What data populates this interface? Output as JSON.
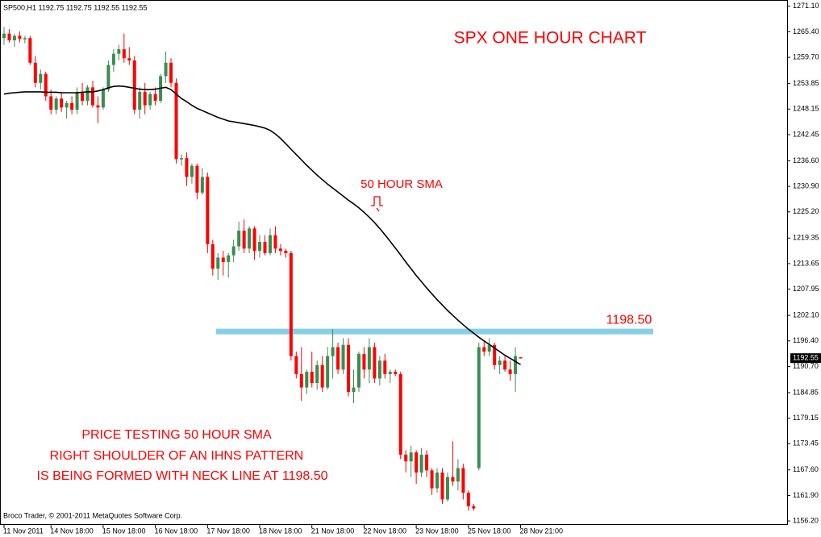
{
  "chart_data": {
    "type": "candlestick",
    "header": "SP500,H1  1192.75 1192.75 1192.55 1192.55",
    "title": "SPX ONE HOUR CHART",
    "sma_label": "50 HOUR SMA",
    "notes": [
      "PRICE TESTING 50 HOUR SMA",
      "RIGHT SHOULDER OF AN IHNS PATTERN",
      "IS BEING FORMED WITH NECK LINE AT 1198.50"
    ],
    "footer": "Broco Trader, © 2001-2011 MetaQuotes Software Corp.",
    "up_color": "#3c8c50",
    "down_color": "#ff0000",
    "neckline": {
      "value": 1198.5,
      "label": "1198.50",
      "color": "#87cfe6"
    },
    "last_price": {
      "value": 1192.55,
      "label": "1192.55"
    },
    "open": [
      1264,
      1265,
      1263.5,
      1264.5,
      1263.8,
      1264,
      1258.5,
      1254,
      1256,
      1251,
      1248,
      1250.5,
      1248.5,
      1249.5,
      1248,
      1252,
      1250,
      1253,
      1249,
      1248.5,
      1252.5,
      1258,
      1260.5,
      1261.5,
      1259.5,
      1259,
      1248,
      1252,
      1249,
      1251.5,
      1250,
      1255.5,
      1258.5,
      1254,
      1237,
      1237.2,
      1233,
      1235.5,
      1229.5,
      1233,
      1218,
      1212.5,
      1215,
      1214,
      1215.5,
      1217.5,
      1221,
      1217,
      1221.5,
      1216.5,
      1218.5,
      1216,
      1220,
      1217,
      1216.5,
      1216,
      1193,
      1189,
      1186,
      1189.5,
      1187,
      1191,
      1186,
      1193,
      1195,
      1190,
      1195.5,
      1185,
      1186,
      1193.5,
      1190,
      1195,
      1188,
      1192,
      1189,
      1189.5,
      1189,
      1171,
      1169.5,
      1171.5,
      1167,
      1171,
      1167.5,
      1163.5,
      1167,
      1161,
      1166,
      1165,
      1168,
      1162.5,
      1159.5,
      1168,
      1195,
      1194,
      1195.5,
      1191,
      1192,
      1190,
      1189,
      1192.75
    ],
    "high": [
      1266.5,
      1266,
      1265,
      1265.5,
      1264.5,
      1264.5,
      1260,
      1257,
      1256.5,
      1252.5,
      1251,
      1252,
      1250,
      1251,
      1253,
      1254,
      1253.5,
      1254.5,
      1251,
      1253,
      1259,
      1261.5,
      1262.5,
      1265,
      1262,
      1260,
      1253,
      1254,
      1252,
      1253,
      1256,
      1261,
      1259.5,
      1255,
      1238,
      1238.5,
      1236,
      1236,
      1235,
      1234,
      1219,
      1216,
      1216.5,
      1216,
      1219,
      1223,
      1223.5,
      1222,
      1222,
      1220,
      1220,
      1221.5,
      1222,
      1218,
      1217,
      1216.5,
      1194,
      1195,
      1190,
      1194,
      1192,
      1193,
      1195,
      1199,
      1196,
      1197,
      1197,
      1190,
      1194,
      1195,
      1197,
      1196,
      1193,
      1193.5,
      1190,
      1190,
      1189.5,
      1172,
      1173,
      1172,
      1172.5,
      1172,
      1168,
      1168,
      1168,
      1167,
      1174,
      1170,
      1169,
      1163,
      1160,
      1196,
      1196.5,
      1197,
      1196,
      1193,
      1193,
      1192,
      1195,
      1192.75
    ],
    "low": [
      1262.5,
      1263,
      1262,
      1263,
      1262.8,
      1258,
      1253,
      1252.5,
      1250,
      1247,
      1247,
      1247.5,
      1246,
      1247,
      1247,
      1249,
      1249,
      1248.5,
      1245,
      1248,
      1252,
      1256.5,
      1259,
      1258.5,
      1258,
      1247,
      1246,
      1247,
      1248,
      1249,
      1249.5,
      1254,
      1253,
      1236,
      1235.5,
      1231,
      1231.5,
      1228,
      1229,
      1216,
      1211,
      1210,
      1211,
      1210.5,
      1214,
      1216.5,
      1216,
      1216,
      1214.5,
      1215,
      1215.5,
      1215.5,
      1216,
      1215.5,
      1215,
      1192,
      1188,
      1183,
      1184.5,
      1186,
      1185.5,
      1185,
      1185.5,
      1188,
      1189,
      1189,
      1184,
      1182.5,
      1185,
      1188,
      1187,
      1187,
      1186.5,
      1188,
      1187,
      1188.5,
      1170,
      1167,
      1166,
      1164.5,
      1166,
      1166,
      1162,
      1162.5,
      1160,
      1160.5,
      1164,
      1163,
      1161,
      1158.5,
      1158.5,
      1167.5,
      1193,
      1193,
      1190,
      1189,
      1189.5,
      1187.5,
      1185,
      1192.55
    ],
    "close": [
      1265,
      1263.5,
      1264.5,
      1263.8,
      1264,
      1258.5,
      1254,
      1256,
      1251,
      1248,
      1250.5,
      1248.5,
      1249.5,
      1248,
      1252,
      1250,
      1253,
      1249,
      1248.5,
      1252.5,
      1258,
      1260.5,
      1261.5,
      1259.5,
      1259,
      1248,
      1252,
      1249,
      1251.5,
      1250,
      1255.5,
      1258.5,
      1254,
      1237,
      1237.2,
      1233,
      1235.5,
      1229.5,
      1233,
      1218,
      1212.5,
      1215,
      1214,
      1215.5,
      1217.5,
      1221,
      1217,
      1221.5,
      1216.5,
      1218.5,
      1216,
      1220,
      1217,
      1216.5,
      1216,
      1193,
      1189,
      1186,
      1189.5,
      1187,
      1191,
      1186,
      1193,
      1195,
      1190,
      1195.5,
      1185,
      1186,
      1193.5,
      1190,
      1195,
      1188,
      1192,
      1189,
      1189.5,
      1189,
      1171,
      1169.5,
      1171.5,
      1167,
      1171,
      1167.5,
      1163.5,
      1167,
      1161,
      1166,
      1165,
      1168,
      1162.5,
      1159.5,
      1159,
      1195,
      1194,
      1195.5,
      1191,
      1192,
      1190,
      1189,
      1193,
      1192.55
    ],
    "sma": {
      "color": "#000000",
      "values": [
        1251.5,
        1251.7,
        1251.8,
        1251.9,
        1252.0,
        1252.0,
        1252.0,
        1252.0,
        1251.9,
        1251.9,
        1251.9,
        1251.8,
        1251.8,
        1251.8,
        1251.8,
        1251.9,
        1252.0,
        1252.0,
        1252.2,
        1252.5,
        1252.9,
        1253.2,
        1253.3,
        1253.2,
        1253.0,
        1252.8,
        1252.6,
        1252.5,
        1252.5,
        1252.6,
        1252.8,
        1253.0,
        1252.5,
        1251.5,
        1250.5,
        1249.8,
        1249.0,
        1248.3,
        1247.8,
        1247.3,
        1246.8,
        1246.3,
        1245.9,
        1245.5,
        1245.3,
        1245.1,
        1244.9,
        1244.7,
        1244.5,
        1244.2,
        1243.9,
        1243.4,
        1242.6,
        1241.6,
        1240.4,
        1239.2,
        1238.0,
        1236.8,
        1235.6,
        1234.5,
        1233.4,
        1232.4,
        1231.4,
        1230.5,
        1229.6,
        1228.7,
        1227.8,
        1227.0,
        1226.1,
        1225.1,
        1224.0,
        1222.8,
        1221.5,
        1220.1,
        1218.6,
        1217.1,
        1215.6,
        1214.0,
        1212.5,
        1211.0,
        1209.6,
        1208.2,
        1206.9,
        1205.6,
        1204.4,
        1203.2,
        1202.1,
        1201.0,
        1200.0,
        1199.0,
        1198.1,
        1197.2,
        1196.4,
        1195.6,
        1194.8,
        1194.0,
        1193.2,
        1192.5,
        1191.8,
        1191.1
      ]
    },
    "xticks": [
      {
        "value": 0,
        "label": "11 Nov 2011"
      },
      {
        "value": 9,
        "label": "14 Nov 18:00"
      },
      {
        "value": 19,
        "label": "15 Nov 18:00"
      },
      {
        "value": 29,
        "label": "16 Nov 18:00"
      },
      {
        "value": 39,
        "label": "17 Nov 18:00"
      },
      {
        "value": 49,
        "label": "18 Nov 18:00"
      },
      {
        "value": 59,
        "label": "21 Nov 18:00"
      },
      {
        "value": 69,
        "label": "22 Nov 18:00"
      },
      {
        "value": 79,
        "label": "23 Nov 18:00"
      },
      {
        "value": 89,
        "label": "25 Nov 18:00"
      },
      {
        "value": 99,
        "label": "28 Nov 21:00"
      }
    ],
    "ylim": [
      1155.5,
      1272.5
    ],
    "yticks": [
      {
        "value": 1271.1,
        "label": "1271.10"
      },
      {
        "value": 1265.4,
        "label": "1265.40"
      },
      {
        "value": 1259.7,
        "label": "1259.70"
      },
      1253.85,
      1248.15,
      1242.45,
      {
        "value": 1236.6,
        "label": "1236.60"
      },
      {
        "value": 1230.9,
        "label": "1230.90"
      },
      {
        "value": 1225.2,
        "label": "1225.20"
      },
      1219.35,
      1213.65,
      1207.95,
      {
        "value": 1202.1,
        "label": "1202.10"
      },
      {
        "value": 1196.4,
        "label": "1196.40"
      },
      {
        "value": 1190.7,
        "label": "1190.70"
      },
      1184.85,
      1179.15,
      1173.45,
      {
        "value": 1167.6,
        "label": "1167.60"
      },
      {
        "value": 1161.9,
        "label": "1161.90"
      },
      {
        "value": 1156.2,
        "label": "1156.20"
      }
    ]
  }
}
